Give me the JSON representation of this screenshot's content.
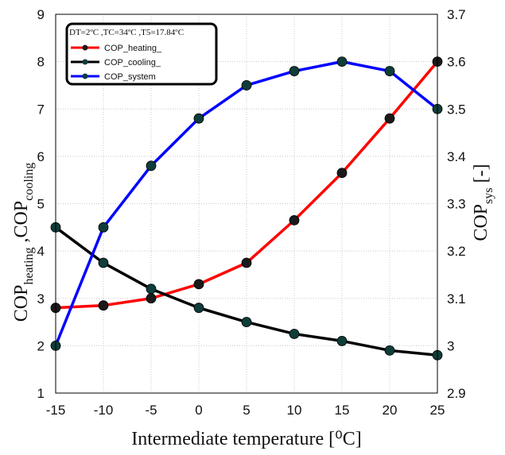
{
  "chart_data": {
    "type": "line",
    "x": [
      -15,
      -10,
      -5,
      0,
      5,
      10,
      15,
      20,
      25
    ],
    "xlabel": "Intermediate temperature [⁰C]",
    "xlim": [
      -15,
      25
    ],
    "ylabel_left": {
      "base": "COP",
      "sub1": "heating",
      "sep": " ,COP",
      "sub2": "cooling"
    },
    "ylabel_right": {
      "base": "COP",
      "sub": "sys",
      "unit": " [-]"
    },
    "ylim_left": [
      1,
      9
    ],
    "ylim_right": [
      2.9,
      3.7
    ],
    "yticks_left": [
      1,
      2,
      3,
      4,
      5,
      6,
      7,
      8,
      9
    ],
    "yticks_right": [
      2.9,
      3,
      3.1,
      3.2,
      3.3,
      3.4,
      3.5,
      3.6,
      3.7
    ],
    "ytick_labels_right": [
      "2.9",
      "3",
      "3.1",
      "3.2",
      "3.3",
      "3.4",
      "3.5",
      "3.6",
      "3.7"
    ],
    "grid": true,
    "legend_title": "DT=2ºC ,TC=34ºC ,T5=17.84ºC",
    "legend_placement": "top-left",
    "series": [
      {
        "name": "COP_heating_",
        "axis": "left",
        "color": "#ff0000",
        "marker": "#1a1a1a",
        "values": [
          2.8,
          2.85,
          3.0,
          3.3,
          3.75,
          4.65,
          5.65,
          6.8,
          8.0
        ]
      },
      {
        "name": "COP_cooling_",
        "axis": "left",
        "color": "#000000",
        "marker": "#0f3d3a",
        "values": [
          4.5,
          3.75,
          3.2,
          2.8,
          2.5,
          2.25,
          2.1,
          1.9,
          1.8
        ]
      },
      {
        "name": "COP_system",
        "axis": "right",
        "color": "#0000ff",
        "marker": "#0f3d3a",
        "values": [
          3.0,
          3.25,
          3.38,
          3.48,
          3.55,
          3.58,
          3.6,
          3.58,
          3.5
        ]
      }
    ]
  }
}
